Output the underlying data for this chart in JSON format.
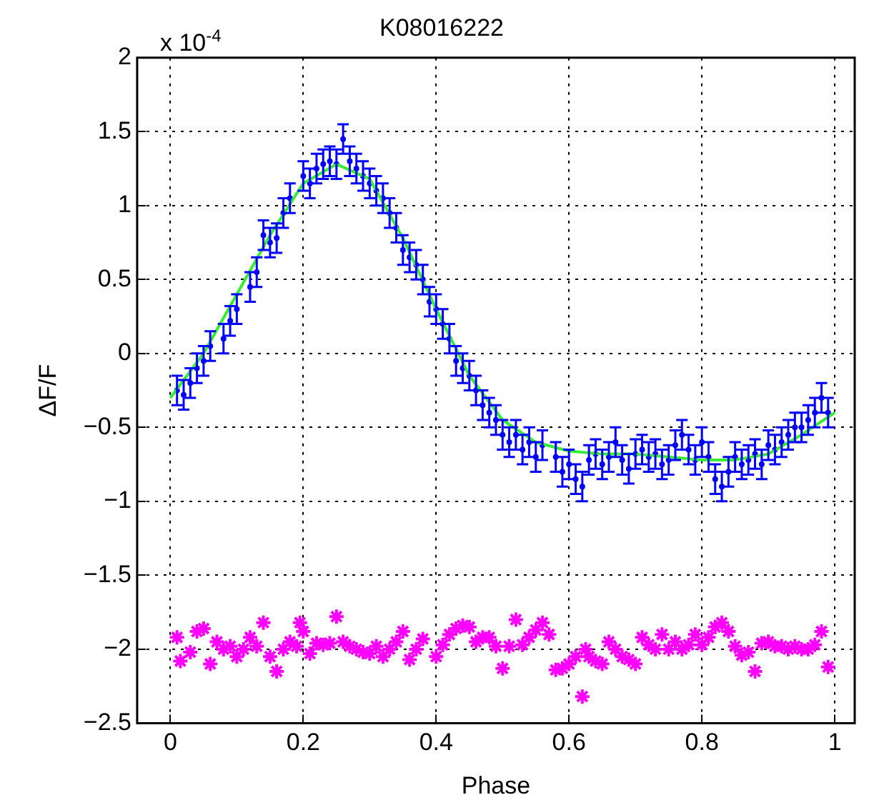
{
  "chart_data": {
    "type": "scatter",
    "title": "K08016222",
    "xlabel": "Phase",
    "ylabel": "ΔF/F",
    "annotations": [
      "x 10$^{-4}$"
    ],
    "xlim": [
      -0.05,
      1.03
    ],
    "xticks": [
      0,
      0.2,
      0.4,
      0.6,
      0.8,
      1
    ],
    "ylim": [
      -2.5,
      2
    ],
    "yticks": [
      -2.5,
      -2,
      -1.5,
      -1,
      -0.5,
      0,
      0.5,
      1,
      1.5,
      2
    ],
    "grid": true,
    "legend": false,
    "series": [
      {
        "marker": "circle",
        "color": "#0000ff",
        "x": [
          0.01,
          0.02,
          0.03,
          0.04,
          0.05,
          0.06,
          0.08,
          0.09,
          0.1,
          0.12,
          0.13,
          0.14,
          0.15,
          0.16,
          0.17,
          0.18,
          0.2,
          0.21,
          0.22,
          0.23,
          0.24,
          0.25,
          0.26,
          0.27,
          0.28,
          0.29,
          0.3,
          0.31,
          0.32,
          0.33,
          0.34,
          0.35,
          0.36,
          0.37,
          0.38,
          0.39,
          0.4,
          0.41,
          0.42,
          0.43,
          0.44,
          0.45,
          0.46,
          0.47,
          0.48,
          0.49,
          0.5,
          0.51,
          0.52,
          0.53,
          0.54,
          0.55,
          0.56,
          0.58,
          0.59,
          0.6,
          0.61,
          0.62,
          0.63,
          0.64,
          0.65,
          0.66,
          0.67,
          0.68,
          0.69,
          0.7,
          0.71,
          0.72,
          0.73,
          0.74,
          0.75,
          0.76,
          0.77,
          0.78,
          0.79,
          0.8,
          0.81,
          0.82,
          0.83,
          0.84,
          0.85,
          0.86,
          0.87,
          0.88,
          0.89,
          0.9,
          0.91,
          0.92,
          0.93,
          0.94,
          0.95,
          0.96,
          0.97,
          0.98,
          0.99
        ],
        "values": [
          -0.25,
          -0.28,
          -0.2,
          -0.1,
          -0.05,
          0.05,
          0.1,
          0.22,
          0.3,
          0.45,
          0.55,
          0.8,
          0.75,
          0.78,
          0.95,
          1.05,
          1.2,
          1.15,
          1.25,
          1.28,
          1.3,
          1.28,
          1.45,
          1.3,
          1.25,
          1.2,
          1.15,
          1.1,
          1.05,
          0.95,
          0.85,
          0.7,
          0.65,
          0.6,
          0.5,
          0.35,
          0.3,
          0.2,
          0.1,
          -0.05,
          -0.1,
          -0.15,
          -0.25,
          -0.35,
          -0.4,
          -0.45,
          -0.55,
          -0.6,
          -0.55,
          -0.65,
          -0.6,
          -0.7,
          -0.62,
          -0.7,
          -0.8,
          -0.75,
          -0.85,
          -0.9,
          -0.72,
          -0.68,
          -0.75,
          -0.7,
          -0.6,
          -0.72,
          -0.78,
          -0.68,
          -0.65,
          -0.7,
          -0.68,
          -0.75,
          -0.72,
          -0.62,
          -0.55,
          -0.65,
          -0.72,
          -0.6,
          -0.7,
          -0.85,
          -0.9,
          -0.8,
          -0.7,
          -0.75,
          -0.72,
          -0.68,
          -0.75,
          -0.62,
          -0.65,
          -0.6,
          -0.55,
          -0.5,
          -0.5,
          -0.45,
          -0.4,
          -0.3,
          -0.4
        ],
        "errors": [
          0.1,
          0.1,
          0.1,
          0.1,
          0.1,
          0.1,
          0.1,
          0.1,
          0.1,
          0.1,
          0.1,
          0.1,
          0.1,
          0.1,
          0.1,
          0.1,
          0.1,
          0.1,
          0.1,
          0.1,
          0.1,
          0.1,
          0.1,
          0.1,
          0.1,
          0.1,
          0.1,
          0.1,
          0.1,
          0.1,
          0.1,
          0.1,
          0.1,
          0.1,
          0.1,
          0.1,
          0.1,
          0.1,
          0.1,
          0.1,
          0.1,
          0.1,
          0.1,
          0.1,
          0.1,
          0.1,
          0.1,
          0.1,
          0.1,
          0.1,
          0.1,
          0.1,
          0.1,
          0.1,
          0.1,
          0.1,
          0.1,
          0.1,
          0.1,
          0.1,
          0.1,
          0.1,
          0.1,
          0.1,
          0.1,
          0.1,
          0.1,
          0.1,
          0.1,
          0.1,
          0.1,
          0.1,
          0.1,
          0.1,
          0.1,
          0.1,
          0.1,
          0.1,
          0.1,
          0.1,
          0.1,
          0.1,
          0.1,
          0.1,
          0.1,
          0.1,
          0.1,
          0.1,
          0.1,
          0.1,
          0.1,
          0.1,
          0.1,
          0.1,
          0.1
        ]
      },
      {
        "type": "line",
        "marker": "none",
        "line_style": "solid",
        "color": "#33ee33",
        "x": [
          0,
          0.05,
          0.1,
          0.15,
          0.2,
          0.25,
          0.3,
          0.35,
          0.4,
          0.45,
          0.5,
          0.55,
          0.6,
          0.65,
          0.7,
          0.75,
          0.8,
          0.85,
          0.9,
          0.95,
          1
        ],
        "values": [
          -0.3,
          0,
          0.4,
          0.8,
          1.15,
          1.28,
          1.18,
          0.78,
          0.3,
          -0.15,
          -0.45,
          -0.6,
          -0.66,
          -0.68,
          -0.68,
          -0.7,
          -0.72,
          -0.72,
          -0.68,
          -0.55,
          -0.4
        ]
      },
      {
        "marker": "cross",
        "color": "#ff00ff",
        "x": [
          0.01,
          0.015,
          0.03,
          0.04,
          0.05,
          0.06,
          0.07,
          0.08,
          0.09,
          0.1,
          0.11,
          0.12,
          0.13,
          0.14,
          0.15,
          0.16,
          0.17,
          0.18,
          0.19,
          0.195,
          0.2,
          0.21,
          0.22,
          0.23,
          0.24,
          0.25,
          0.26,
          0.27,
          0.28,
          0.29,
          0.3,
          0.31,
          0.32,
          0.33,
          0.34,
          0.35,
          0.36,
          0.37,
          0.38,
          0.4,
          0.41,
          0.42,
          0.43,
          0.44,
          0.45,
          0.46,
          0.47,
          0.48,
          0.49,
          0.5,
          0.51,
          0.52,
          0.53,
          0.54,
          0.55,
          0.56,
          0.57,
          0.58,
          0.59,
          0.6,
          0.61,
          0.62,
          0.625,
          0.63,
          0.64,
          0.65,
          0.66,
          0.67,
          0.68,
          0.69,
          0.7,
          0.71,
          0.72,
          0.73,
          0.74,
          0.75,
          0.76,
          0.77,
          0.78,
          0.79,
          0.8,
          0.81,
          0.82,
          0.83,
          0.84,
          0.85,
          0.86,
          0.87,
          0.88,
          0.89,
          0.9,
          0.91,
          0.92,
          0.93,
          0.94,
          0.95,
          0.96,
          0.97,
          0.98,
          0.99
        ],
        "values": [
          -1.92,
          -2.08,
          -2.02,
          -1.88,
          -1.86,
          -2.1,
          -1.95,
          -2,
          -1.98,
          -2.05,
          -2,
          -1.92,
          -1.98,
          -1.82,
          -2.05,
          -2.15,
          -2,
          -1.95,
          -1.98,
          -1.82,
          -1.88,
          -2.03,
          -1.96,
          -1.97,
          -1.96,
          -1.78,
          -1.95,
          -1.98,
          -2,
          -2.02,
          -2.03,
          -1.98,
          -2.05,
          -2,
          -1.95,
          -1.88,
          -2.07,
          -2,
          -1.93,
          -2.05,
          -1.97,
          -1.9,
          -1.86,
          -1.84,
          -1.85,
          -1.95,
          -1.92,
          -1.92,
          -1.98,
          -2.13,
          -1.98,
          -1.8,
          -1.97,
          -1.92,
          -1.87,
          -1.82,
          -1.9,
          -2.14,
          -2.13,
          -2.1,
          -2.05,
          -2.32,
          -2,
          -2.05,
          -2.08,
          -2.1,
          -1.95,
          -2,
          -2.05,
          -2.07,
          -2.1,
          -1.92,
          -1.97,
          -2,
          -1.9,
          -2,
          -1.95,
          -2,
          -1.97,
          -1.9,
          -1.97,
          -1.92,
          -1.85,
          -1.82,
          -1.88,
          -1.98,
          -2.04,
          -2.02,
          -2.15,
          -1.96,
          -1.95,
          -1.98,
          -1.98,
          -2,
          -1.98,
          -2,
          -2,
          -1.97,
          -1.88,
          -2.12
        ]
      }
    ]
  }
}
